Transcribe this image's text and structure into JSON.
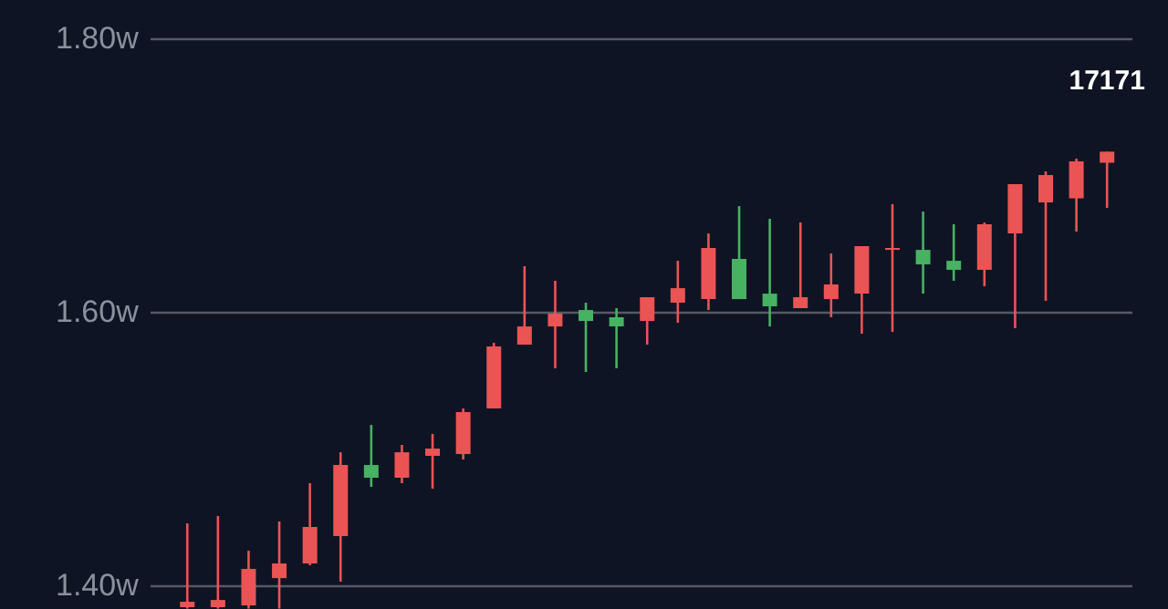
{
  "chart_data": {
    "type": "candlestick",
    "categories": [
      null,
      null,
      null,
      null,
      null,
      null,
      null,
      null,
      null,
      null,
      null,
      null,
      null,
      null,
      null,
      null,
      null,
      null,
      null,
      null,
      null,
      null,
      null,
      null,
      null,
      null,
      null,
      null,
      null,
      null,
      null
    ],
    "ohlc": [
      [
        1.384,
        1.4453,
        1.383,
        1.388
      ],
      [
        1.384,
        1.4507,
        1.383,
        1.3893
      ],
      [
        1.3853,
        1.4253,
        1.383,
        1.412
      ],
      [
        1.4053,
        1.4467,
        1.383,
        1.416
      ],
      [
        1.416,
        1.4747,
        1.4147,
        1.4427
      ],
      [
        1.436,
        1.4973,
        1.4027,
        1.488
      ],
      [
        1.488,
        1.5173,
        1.472,
        1.4787
      ],
      [
        1.4787,
        1.5027,
        1.4747,
        1.4973
      ],
      [
        1.4947,
        1.5107,
        1.4707,
        1.5
      ],
      [
        1.496,
        1.5293,
        1.492,
        1.5267
      ],
      [
        1.5293,
        1.5773,
        1.5293,
        1.5747
      ],
      [
        1.576,
        1.6333,
        1.576,
        1.5893
      ],
      [
        1.5893,
        1.6227,
        1.5587,
        1.5987
      ],
      [
        1.6013,
        1.6067,
        1.556,
        1.5933
      ],
      [
        1.596,
        1.6027,
        1.5587,
        1.5893
      ],
      [
        1.5933,
        1.6107,
        1.576,
        1.6107
      ],
      [
        1.6067,
        1.6373,
        1.592,
        1.6173
      ],
      [
        1.6093,
        1.6573,
        1.6013,
        1.6467
      ],
      [
        1.6387,
        1.6773,
        1.6093,
        1.6093
      ],
      [
        1.6133,
        1.668,
        1.5893,
        1.604
      ],
      [
        1.6027,
        1.6653,
        1.6027,
        1.6107
      ],
      [
        1.6093,
        1.6427,
        1.596,
        1.62
      ],
      [
        1.6133,
        1.648,
        1.584,
        1.648
      ],
      [
        1.6453,
        1.6787,
        1.5853,
        1.6467
      ],
      [
        1.6453,
        1.6733,
        1.6133,
        1.6347
      ],
      [
        1.6373,
        1.664,
        1.6227,
        1.6307
      ],
      [
        1.6307,
        1.6653,
        1.6187,
        1.664
      ],
      [
        1.6573,
        1.6933,
        1.588,
        1.6933
      ],
      [
        1.68,
        1.7027,
        1.608,
        1.7
      ],
      [
        1.683,
        1.712,
        1.6587,
        1.71
      ],
      [
        1.709,
        1.7171,
        1.676,
        1.7171
      ]
    ],
    "colors": [
      "#eb5454",
      "#eb5454",
      "#eb5454",
      "#eb5454",
      "#eb5454",
      "#eb5454",
      "#47b262",
      "#eb5454",
      "#eb5454",
      "#eb5454",
      "#eb5454",
      "#eb5454",
      "#eb5454",
      "#47b262",
      "#47b262",
      "#eb5454",
      "#eb5454",
      "#eb5454",
      "#47b262",
      "#47b262",
      "#eb5454",
      "#eb5454",
      "#eb5454",
      "#eb5454",
      "#47b262",
      "#47b262",
      "#eb5454",
      "#eb5454",
      "#eb5454",
      "#eb5454",
      "#eb5454"
    ],
    "ylim": [
      1.3827,
      1.828
    ],
    "yticks": [
      {
        "value": 1.4,
        "label": "1.40w"
      },
      {
        "value": 1.6,
        "label": "1.60w"
      },
      {
        "value": 1.8,
        "label": "1.80w"
      }
    ],
    "grid": "y",
    "annotations": [
      {
        "text": "17171",
        "y": 1.7171
      }
    ]
  }
}
